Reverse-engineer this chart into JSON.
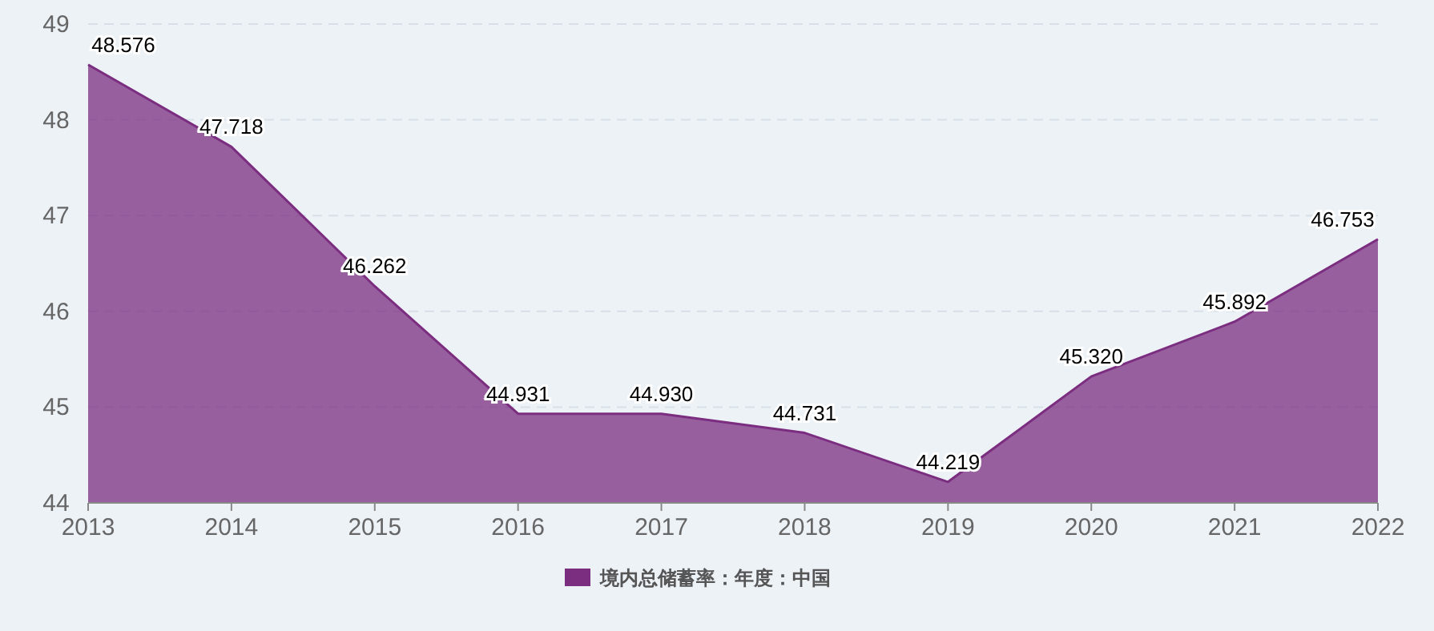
{
  "chart_data": {
    "type": "area",
    "x": [
      2013,
      2014,
      2015,
      2016,
      2017,
      2018,
      2019,
      2020,
      2021,
      2022
    ],
    "series": [
      {
        "name": "境内总储蓄率：年度：中国",
        "color": "#7b2d80",
        "values": [
          48.576,
          47.718,
          46.262,
          44.931,
          44.93,
          44.731,
          44.219,
          45.32,
          45.892,
          46.753
        ],
        "value_labels": [
          "48.576",
          "47.718",
          "46.262",
          "44.931",
          "44.930",
          "44.731",
          "44.219",
          "45.320",
          "45.892",
          "46.753"
        ]
      }
    ],
    "xlim": [
      2013,
      2022
    ],
    "xticks": [
      2013,
      2014,
      2015,
      2016,
      2017,
      2018,
      2019,
      2020,
      2021,
      2022
    ],
    "ylim": [
      44,
      49
    ],
    "yticks": [
      44,
      45,
      46,
      47,
      48,
      49
    ],
    "grid": "y",
    "legend": "bottom"
  }
}
